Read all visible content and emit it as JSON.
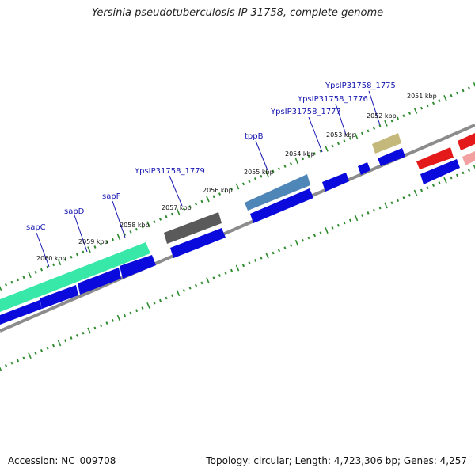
{
  "title": "Yersinia pseudotuberculosis IP 31758, complete genome",
  "footer": {
    "accession": "Accession: NC_009708",
    "summary": "Topology: circular; Length: 4,723,306 bp; Genes: 4,257"
  },
  "colors": {
    "backbone": "#8c8c8c",
    "tick": "#2e8b2e",
    "cds_blue": "#0a0adc",
    "label": "#1515b0",
    "green": "#38e8a8",
    "dark_gray": "#5a5a5a",
    "steel_blue": "#4f86b8",
    "khaki": "#c4b87a",
    "red": "#e41a1a",
    "pink": "#f2a0a0"
  },
  "kbp_labels": [
    "2051 kbp",
    "2052 kbp",
    "2053 kbp",
    "2054 kbp",
    "2055 kbp",
    "2056 kbp",
    "2057 kbp",
    "2058 kbp",
    "2059 kbp",
    "2060 kbp"
  ],
  "gene_labels": [
    "YpsIP31758_1775",
    "YpsIP31758_1776",
    "YpsIP31758_1777",
    "tppB",
    "YpsIP31758_1779",
    "sapF",
    "sapD",
    "sapC"
  ]
}
